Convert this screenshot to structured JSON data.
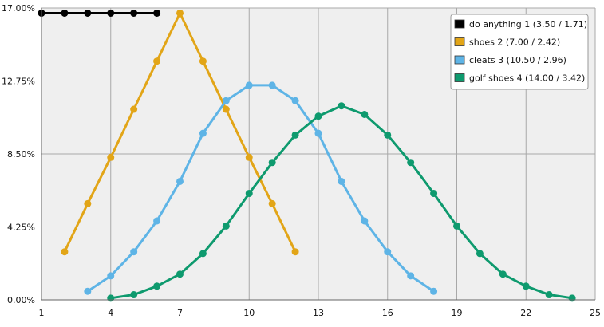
{
  "chart_data": {
    "type": "line",
    "x": [
      1,
      2,
      3,
      4,
      5,
      6,
      7,
      8,
      9,
      10,
      11,
      12,
      13,
      14,
      15,
      16,
      17,
      18,
      19,
      20,
      21,
      22,
      23,
      24,
      25
    ],
    "xlim": [
      1,
      25
    ],
    "ylim": [
      0,
      17
    ],
    "xticks": [
      1,
      4,
      7,
      10,
      13,
      16,
      19,
      22,
      25
    ],
    "xtick_labels": [
      "1",
      "4",
      "7",
      "10",
      "13",
      "16",
      "19",
      "22",
      "25"
    ],
    "yticks": [
      0,
      4.25,
      8.5,
      12.75,
      17
    ],
    "ytick_labels": [
      "0.00%",
      "4.25%",
      "8.50%",
      "12.75%",
      "17.00%"
    ],
    "grid": true,
    "legend_position": "top-right",
    "series": [
      {
        "name": "do anything 1 (3.50 / 1.71)",
        "color": "#000000",
        "points": [
          [
            1,
            16.7
          ],
          [
            2,
            16.7
          ],
          [
            3,
            16.7
          ],
          [
            4,
            16.7
          ],
          [
            5,
            16.7
          ],
          [
            6,
            16.7
          ]
        ]
      },
      {
        "name": "shoes 2 (7.00 / 2.42)",
        "color": "#E2A517",
        "points": [
          [
            2,
            2.8
          ],
          [
            3,
            5.6
          ],
          [
            4,
            8.3
          ],
          [
            5,
            11.1
          ],
          [
            6,
            13.9
          ],
          [
            7,
            16.7
          ],
          [
            8,
            13.9
          ],
          [
            9,
            11.1
          ],
          [
            10,
            8.3
          ],
          [
            11,
            5.6
          ],
          [
            12,
            2.8
          ]
        ]
      },
      {
        "name": "cleats 3 (10.50 / 2.96)",
        "color": "#5EB4E6",
        "points": [
          [
            3,
            0.5
          ],
          [
            4,
            1.4
          ],
          [
            5,
            2.8
          ],
          [
            6,
            4.6
          ],
          [
            7,
            6.9
          ],
          [
            8,
            9.7
          ],
          [
            9,
            11.6
          ],
          [
            10,
            12.5
          ],
          [
            11,
            12.5
          ],
          [
            12,
            11.6
          ],
          [
            13,
            9.7
          ],
          [
            14,
            6.9
          ],
          [
            15,
            4.6
          ],
          [
            16,
            2.8
          ],
          [
            17,
            1.4
          ],
          [
            18,
            0.5
          ]
        ]
      },
      {
        "name": "golf shoes 4 (14.00 / 3.42)",
        "color": "#0E9A6E",
        "points": [
          [
            4,
            0.1
          ],
          [
            5,
            0.3
          ],
          [
            6,
            0.8
          ],
          [
            7,
            1.5
          ],
          [
            8,
            2.7
          ],
          [
            9,
            4.3
          ],
          [
            10,
            6.2
          ],
          [
            11,
            8.0
          ],
          [
            12,
            9.6
          ],
          [
            13,
            10.7
          ],
          [
            14,
            11.3
          ],
          [
            15,
            10.8
          ],
          [
            16,
            9.6
          ],
          [
            17,
            8.0
          ],
          [
            18,
            6.2
          ],
          [
            19,
            4.3
          ],
          [
            20,
            2.7
          ],
          [
            21,
            1.5
          ],
          [
            22,
            0.8
          ],
          [
            23,
            0.3
          ],
          [
            24,
            0.1
          ]
        ]
      }
    ]
  }
}
